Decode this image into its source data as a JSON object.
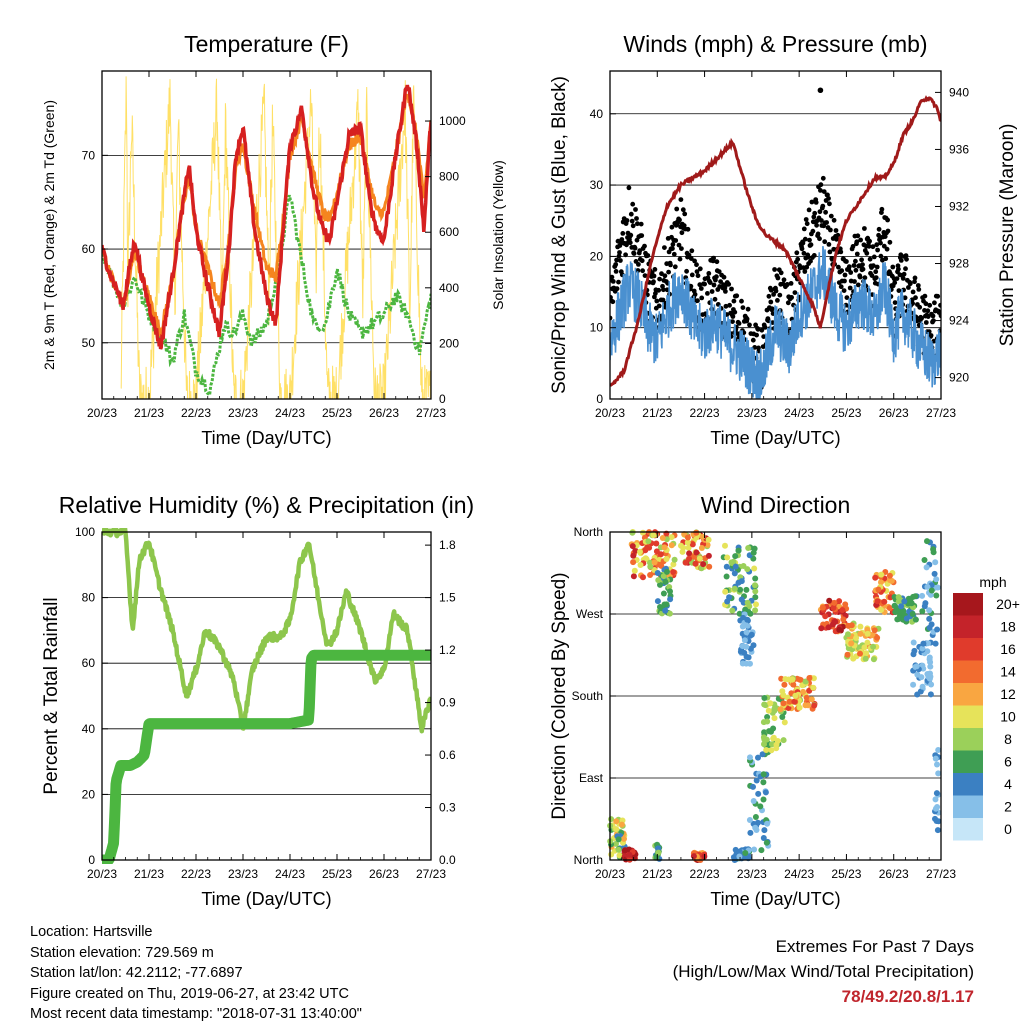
{
  "colors": {
    "temp2m": "#d62020",
    "temp9m": "#f5851f",
    "dewpoint": "#4cb640",
    "solar": "#ffe066",
    "wind": "#4a90d0",
    "gust": "#000000",
    "pressure": "#a01a1a",
    "rh": "#8dc64c",
    "precip": "#4cb640",
    "extremes": "#c0262d"
  },
  "chart_data": [
    {
      "type": "line",
      "title": "Temperature (F)",
      "xlabel": "Time (Day/UTC)",
      "ylabel": "2m & 9m T (Red, Orange) & 2m Td (Green)",
      "ylabel_right": "Solar Insolation (Yellow)",
      "x_ticks": [
        "20/23",
        "21/23",
        "22/23",
        "23/23",
        "24/23",
        "25/23",
        "26/23",
        "27/23"
      ],
      "xlim": [
        0,
        7
      ],
      "ylim": [
        44,
        79
      ],
      "y_ticks": [
        50,
        60,
        70
      ],
      "ylim_right": [
        0,
        1180
      ],
      "y_ticks_right": [
        0,
        200,
        400,
        600,
        800,
        1000
      ],
      "grid": "horizontal",
      "series": [
        {
          "key": "t2m",
          "x": [
            0,
            0.2,
            0.45,
            0.55,
            0.7,
            0.85,
            1,
            1.25,
            1.5,
            1.7,
            1.85,
            2,
            2.25,
            2.5,
            2.7,
            2.85,
            3,
            3.25,
            3.5,
            3.7,
            3.85,
            4,
            4.25,
            4.5,
            4.7,
            4.85,
            5,
            5.25,
            5.5,
            5.7,
            5.85,
            6,
            6.25,
            6.5,
            6.7,
            6.85,
            7
          ],
          "y": [
            60,
            57,
            54,
            57,
            61,
            57,
            54,
            49.5,
            57,
            64,
            69,
            62,
            56,
            51,
            60,
            70,
            73,
            62,
            55,
            52,
            62,
            71,
            75,
            66,
            62,
            61,
            65,
            72,
            73,
            65,
            62,
            61,
            70,
            78,
            71,
            62,
            74
          ]
        },
        {
          "key": "t9m",
          "x": [
            0,
            0.2,
            0.45,
            0.55,
            0.7,
            0.85,
            1,
            1.25,
            1.5,
            1.7,
            1.85,
            2,
            2.25,
            2.5,
            2.7,
            2.85,
            3,
            3.25,
            3.5,
            3.7,
            3.85,
            4,
            4.25,
            4.5,
            4.7,
            4.85,
            5,
            5.25,
            5.5,
            5.7,
            5.85,
            6,
            6.25,
            6.5,
            6.7,
            6.85,
            7
          ],
          "y": [
            60,
            57,
            54,
            56,
            60,
            57,
            55,
            51,
            57,
            64,
            68,
            62,
            58,
            54,
            61,
            69,
            71,
            64,
            58,
            57,
            63,
            70,
            74,
            68,
            64,
            63,
            66,
            71,
            72,
            67,
            64,
            64,
            70,
            77,
            72,
            65,
            74
          ]
        },
        {
          "key": "td",
          "x": [
            0,
            0.2,
            0.45,
            0.7,
            0.9,
            1,
            1.25,
            1.5,
            1.75,
            2,
            2.3,
            2.6,
            2.8,
            3,
            3.2,
            3.5,
            3.75,
            4,
            4.2,
            4.5,
            4.75,
            5,
            5.25,
            5.5,
            5.75,
            6,
            6.25,
            6.5,
            6.75,
            7
          ],
          "y": [
            60,
            57,
            54,
            57,
            54,
            53,
            51,
            48,
            53,
            47,
            45,
            52,
            51,
            53,
            50,
            52,
            58,
            66,
            60,
            52,
            52,
            58,
            53,
            51,
            52,
            53,
            55,
            53,
            49,
            55
          ]
        },
        {
          "key": "solar",
          "x": [
            0.4,
            0.52,
            0.55,
            0.63,
            0.8,
            1,
            1.45,
            1.55,
            1.62,
            1.8,
            2,
            2.45,
            2.55,
            2.63,
            2.8,
            3,
            3.45,
            3.55,
            3.63,
            3.8,
            4,
            4.45,
            4.55,
            4.63,
            4.8,
            5,
            5.45,
            5.55,
            5.63,
            5.8,
            6,
            6.45,
            6.55,
            6.63,
            6.8,
            7
          ],
          "y": [
            0,
            1150,
            400,
            1000,
            0,
            0,
            1080,
            350,
            980,
            0,
            0,
            1060,
            300,
            1000,
            0,
            0,
            1040,
            380,
            990,
            0,
            0,
            1070,
            420,
            1000,
            0,
            0,
            1040,
            350,
            1010,
            0,
            0,
            1060,
            300,
            1080,
            0,
            0
          ]
        }
      ]
    },
    {
      "type": "line",
      "title": "Winds (mph) & Pressure (mb)",
      "xlabel": "Time (Day/UTC)",
      "ylabel": "Sonic/Prop Wind & Gust (Blue, Black)",
      "ylabel_right": "Station Pressure (Maroon)",
      "x_ticks": [
        "20/23",
        "21/23",
        "22/23",
        "23/23",
        "24/23",
        "25/23",
        "26/23",
        "27/23"
      ],
      "xlim": [
        0,
        7
      ],
      "ylim": [
        0,
        46
      ],
      "y_ticks": [
        0,
        10,
        20,
        30,
        40
      ],
      "ylim_right": [
        918.5,
        941.5
      ],
      "y_ticks_right": [
        920,
        924,
        928,
        932,
        936,
        940
      ],
      "grid": "horizontal",
      "series": [
        {
          "key": "wind",
          "x": [
            0,
            0.2,
            0.4,
            0.6,
            0.8,
            1,
            1.2,
            1.5,
            1.8,
            2,
            2.2,
            2.5,
            2.8,
            3,
            3.2,
            3.5,
            3.8,
            4,
            4.2,
            4.5,
            4.8,
            5,
            5.3,
            5.6,
            5.8,
            6,
            6.2,
            6.5,
            6.8,
            7
          ],
          "y": [
            8,
            12,
            16,
            14,
            10,
            8,
            12,
            16,
            10,
            9,
            11,
            8,
            6,
            4,
            3,
            10,
            7,
            12,
            14,
            18,
            12,
            10,
            14,
            11,
            16,
            9,
            12,
            8,
            5,
            7
          ]
        },
        {
          "key": "gust",
          "x": [
            0,
            0.2,
            0.4,
            0.6,
            0.8,
            1,
            1.2,
            1.5,
            1.8,
            2,
            2.2,
            2.5,
            2.8,
            3,
            3.2,
            3.5,
            3.8,
            4,
            4.2,
            4.5,
            4.8,
            5,
            5.3,
            5.6,
            5.8,
            6,
            6.2,
            6.5,
            6.8,
            7
          ],
          "y": [
            12,
            20,
            26,
            22,
            16,
            13,
            18,
            24,
            15,
            13,
            16,
            12,
            10,
            7,
            5,
            15,
            11,
            18,
            22,
            27,
            19,
            15,
            21,
            17,
            25,
            13,
            17,
            12,
            9,
            11
          ]
        },
        {
          "key": "pressure",
          "x": [
            0,
            0.3,
            0.6,
            0.9,
            1.2,
            1.5,
            2,
            2.3,
            2.6,
            2.9,
            3.1,
            3.3,
            3.7,
            4,
            4.3,
            4.45,
            4.6,
            4.8,
            5,
            5.3,
            5.6,
            5.8,
            6,
            6.2,
            6.4,
            6.6,
            6.75,
            6.9,
            7
          ],
          "y": [
            919.3,
            920.5,
            924,
            928.5,
            932,
            933.5,
            934.5,
            935.5,
            936.5,
            933,
            931,
            930,
            929,
            927,
            925,
            923.5,
            926,
            929,
            931,
            932.5,
            934,
            934,
            935,
            937,
            938,
            939.5,
            939.6,
            939,
            938
          ]
        }
      ],
      "annotations": [
        {
          "x": 4.45,
          "y": 43.3,
          "type": "outlier-point"
        }
      ]
    },
    {
      "type": "line",
      "title": "Relative Humidity (%) & Precipitation (in)",
      "xlabel": "Time (Day/UTC)",
      "ylabel": "Percent & Total Rainfall",
      "x_ticks": [
        "20/23",
        "21/23",
        "22/23",
        "23/23",
        "24/23",
        "25/23",
        "26/23",
        "27/23"
      ],
      "xlim": [
        0,
        7
      ],
      "ylim": [
        0,
        100
      ],
      "y_ticks": [
        0,
        20,
        40,
        60,
        80,
        100
      ],
      "ylim_right": [
        0,
        1.875
      ],
      "y_ticks_right": [
        "0.0",
        "0.3",
        "0.6",
        "0.9",
        "1.2",
        "1.5",
        "1.8"
      ],
      "grid": "horizontal",
      "series": [
        {
          "key": "rh",
          "x": [
            0,
            0.5,
            0.65,
            0.8,
            1,
            1.2,
            1.5,
            1.8,
            2,
            2.2,
            2.5,
            2.8,
            3,
            3.2,
            3.5,
            3.8,
            4,
            4.2,
            4.4,
            4.6,
            4.8,
            5,
            5.2,
            5.5,
            5.8,
            6,
            6.2,
            6.5,
            6.8,
            7
          ],
          "y": [
            100,
            100,
            70,
            92,
            97,
            85,
            70,
            50,
            58,
            70,
            65,
            55,
            40,
            58,
            68,
            68,
            73,
            90,
            97,
            80,
            65,
            70,
            82,
            70,
            55,
            58,
            75,
            70,
            40,
            50
          ]
        },
        {
          "key": "precip",
          "x": [
            0,
            0.15,
            0.25,
            0.3,
            0.4,
            0.6,
            0.75,
            0.9,
            1,
            1.4,
            2,
            3,
            4,
            4.4,
            4.45,
            4.5,
            5,
            6,
            7
          ],
          "y": [
            0,
            0,
            0.1,
            0.45,
            0.54,
            0.54,
            0.56,
            0.6,
            0.78,
            0.78,
            0.78,
            0.78,
            0.78,
            0.8,
            1.15,
            1.17,
            1.17,
            1.17,
            1.17
          ]
        }
      ]
    },
    {
      "type": "scatter",
      "title": "Wind Direction",
      "xlabel": "Time (Day/UTC)",
      "ylabel": "Direction (Colored By Speed)",
      "x_ticks": [
        "20/23",
        "21/23",
        "22/23",
        "23/23",
        "24/23",
        "25/23",
        "26/23",
        "27/23"
      ],
      "xlim": [
        0,
        7
      ],
      "y_tick_labels": [
        "North",
        "East",
        "South",
        "West",
        "North"
      ],
      "y_ticks": [
        0,
        90,
        180,
        270,
        360
      ],
      "ylim": [
        0,
        360
      ],
      "grid": "horizontal",
      "colorbar": {
        "title": "mph",
        "labels": [
          "20+",
          "18",
          "16",
          "14",
          "12",
          "10",
          "8",
          "6",
          "4",
          "2",
          "0"
        ],
        "colors": [
          "#a6171c",
          "#c4232a",
          "#e03b2c",
          "#f26b2f",
          "#f9a641",
          "#e6e35a",
          "#9bd05a",
          "#3f9e54",
          "#3b80c2",
          "#86bfe8",
          "#c6e6f8"
        ]
      },
      "clusters": [
        {
          "x": [
            0,
            0.35
          ],
          "y": [
            0,
            45
          ],
          "speed": [
            4,
            12
          ]
        },
        {
          "x": [
            0.3,
            0.55
          ],
          "y": [
            0,
            12
          ],
          "speed": [
            16,
            20
          ]
        },
        {
          "x": [
            0.95,
            1.05
          ],
          "y": [
            0,
            18
          ],
          "speed": [
            4,
            8
          ]
        },
        {
          "x": [
            1.75,
            2.0
          ],
          "y": [
            0,
            8
          ],
          "speed": [
            12,
            20
          ]
        },
        {
          "x": [
            0.45,
            1.4
          ],
          "y": [
            310,
            360
          ],
          "speed": [
            8,
            18
          ]
        },
        {
          "x": [
            1.0,
            1.3
          ],
          "y": [
            270,
            320
          ],
          "speed": [
            4,
            8
          ]
        },
        {
          "x": [
            1.5,
            2.1
          ],
          "y": [
            320,
            360
          ],
          "speed": [
            8,
            18
          ]
        },
        {
          "x": [
            2.4,
            3.1
          ],
          "y": [
            270,
            345
          ],
          "speed": [
            4,
            10
          ]
        },
        {
          "x": [
            2.75,
            3.05
          ],
          "y": [
            215,
            270
          ],
          "speed": [
            2,
            4
          ]
        },
        {
          "x": [
            2.6,
            2.95
          ],
          "y": [
            0,
            12
          ],
          "speed": [
            2,
            6
          ]
        },
        {
          "x": [
            2.95,
            3.35
          ],
          "y": [
            10,
            120
          ],
          "speed": [
            2,
            6
          ]
        },
        {
          "x": [
            3.25,
            3.7
          ],
          "y": [
            120,
            180
          ],
          "speed": [
            6,
            10
          ]
        },
        {
          "x": [
            3.6,
            4.35
          ],
          "y": [
            165,
            200
          ],
          "speed": [
            8,
            16
          ]
        },
        {
          "x": [
            4.45,
            5.0
          ],
          "y": [
            250,
            285
          ],
          "speed": [
            12,
            20
          ]
        },
        {
          "x": [
            5.0,
            5.7
          ],
          "y": [
            220,
            260
          ],
          "speed": [
            8,
            14
          ]
        },
        {
          "x": [
            5.6,
            6.0
          ],
          "y": [
            270,
            320
          ],
          "speed": [
            10,
            18
          ]
        },
        {
          "x": [
            6.0,
            6.5
          ],
          "y": [
            260,
            290
          ],
          "speed": [
            4,
            8
          ]
        },
        {
          "x": [
            6.4,
            6.8
          ],
          "y": [
            180,
            240
          ],
          "speed": [
            2,
            4
          ]
        },
        {
          "x": [
            6.6,
            6.95
          ],
          "y": [
            230,
            350
          ],
          "speed": [
            2,
            6
          ]
        },
        {
          "x": [
            6.85,
            6.95
          ],
          "y": [
            20,
            130
          ],
          "speed": [
            2,
            4
          ]
        }
      ]
    }
  ],
  "info": {
    "location": "Location: Hartsville",
    "elevation": "Station elevation: 729.569 m",
    "latlon": "Station lat/lon: 42.2112; -77.6897",
    "created": "Figure created on Thu, 2019-06-27, at 23:42 UTC",
    "timestamp": "Most recent data timestamp: \"2018-07-31 13:40:00\""
  },
  "extremes": {
    "title": "Extremes For Past 7 Days",
    "subtitle": "(High/Low/Max Wind/Total Precipitation)",
    "values": "78/49.2/20.8/1.17"
  }
}
